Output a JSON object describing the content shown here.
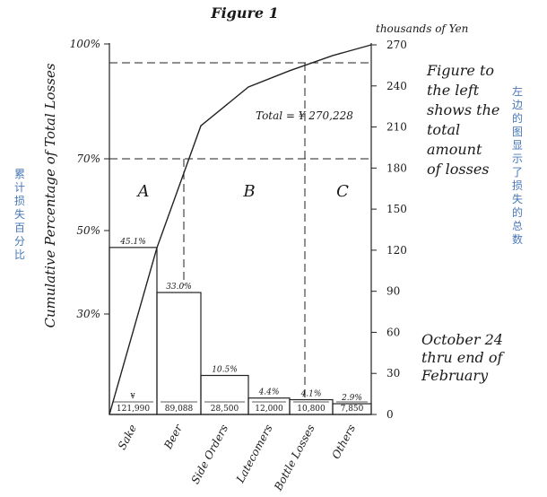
{
  "chart_data": {
    "type": "bar",
    "title": "Figure 1",
    "ylabel_left": "Cumulative Percentage of Total Losses",
    "ylabel_right": "thousands of Yen",
    "left_ticks": [
      "100%",
      "70%",
      "50%",
      "30%"
    ],
    "left_tick_values": [
      100,
      70,
      50,
      30
    ],
    "right_ticks": [
      270,
      240,
      210,
      180,
      150,
      120,
      90,
      60,
      30,
      0
    ],
    "ylim": [
      0,
      270
    ],
    "categories": [
      "Sake",
      "Beer",
      "Side Orders",
      "Latecomers",
      "Bottle Losses",
      "Others"
    ],
    "values": [
      121990,
      89088,
      28500,
      12000,
      10800,
      7850
    ],
    "value_labels": [
      "121,990",
      "89,088",
      "28,500",
      "12,000",
      "10,800",
      "7,850"
    ],
    "currency_mark": "¥",
    "percent_labels": [
      "45.1%",
      "33.0%",
      "10.5%",
      "4.4%",
      "4.1%",
      "2.9%"
    ],
    "cumulative_line": {
      "x": [
        "Sake",
        "Beer",
        "Side Orders",
        "Latecomers",
        "Bottle Losses",
        "Others"
      ],
      "y": [
        45.1,
        78.1,
        88.6,
        93.0,
        97.1,
        100
      ]
    },
    "zones": [
      "A",
      "B",
      "C"
    ],
    "total_label": "Total = ¥ 270,228",
    "legend": "none",
    "grid": false
  },
  "side_note": [
    "Figure to",
    "the left",
    "shows the",
    "total",
    "amount",
    "of losses"
  ],
  "date_note": [
    "October 24",
    "thru   end of",
    "February"
  ],
  "cn_left": "累计损失百分比",
  "cn_right": "左边的图显示了损失的总数"
}
